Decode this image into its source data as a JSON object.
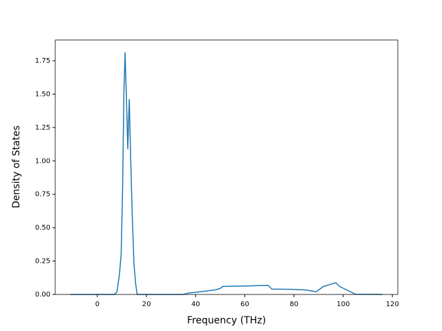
{
  "chart_data": {
    "type": "line",
    "x_label": "Frequency (THz)",
    "y_label": "Density of States",
    "xlim": [
      -17.1,
      122.2
    ],
    "ylim": [
      0,
      1.905
    ],
    "xticks": [
      0,
      20,
      40,
      60,
      80,
      100,
      120
    ],
    "yticks": [
      {
        "value": 0,
        "label": "0.00"
      },
      {
        "value": 0.25,
        "label": "0.25"
      },
      {
        "value": 0.5,
        "label": "0.50"
      },
      {
        "value": 0.75,
        "label": "0.75"
      },
      {
        "value": 1,
        "label": "1.00"
      },
      {
        "value": 1.25,
        "label": "1.25"
      },
      {
        "value": 1.5,
        "label": "1.50"
      },
      {
        "value": 1.75,
        "label": "1.75"
      }
    ],
    "grid": false,
    "x": [
      -11,
      7,
      8,
      9,
      9.7,
      10.3,
      10.8,
      11.3,
      11.8,
      12.4,
      13,
      13.6,
      14.2,
      14.9,
      15.6,
      16.2,
      35,
      37,
      40,
      45,
      48,
      50,
      51,
      60,
      69.5,
      71,
      80,
      85,
      89,
      92,
      97,
      98.5,
      105,
      116
    ],
    "series": [
      {
        "color": "#1f77b4",
        "values": [
          0,
          0,
          0.02,
          0.15,
          0.3,
          0.8,
          1.5,
          1.81,
          1.5,
          1.09,
          1.46,
          1.0,
          0.6,
          0.23,
          0.08,
          0,
          0,
          0.01,
          0.016,
          0.027,
          0.035,
          0.045,
          0.06,
          0.063,
          0.068,
          0.04,
          0.038,
          0.033,
          0.02,
          0.06,
          0.088,
          0.06,
          0.002,
          0
        ]
      }
    ]
  }
}
